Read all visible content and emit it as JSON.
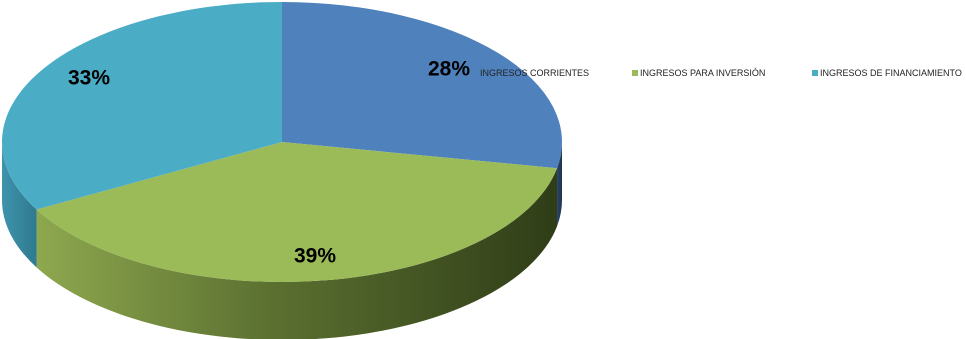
{
  "chart_data": {
    "type": "pie",
    "style": "3d",
    "categories": [
      "INGRESOS CORRIENTES",
      "INGRESOS PARA INVERSIÓN",
      "INGRESOS DE FINANCIAMIENTO"
    ],
    "values": [
      28,
      39,
      33
    ],
    "data_labels": [
      "28%",
      "39%",
      "33%"
    ],
    "colors": [
      "#4f81bd",
      "#9bbb59",
      "#4bacc6"
    ],
    "legend_position": "top-right"
  }
}
